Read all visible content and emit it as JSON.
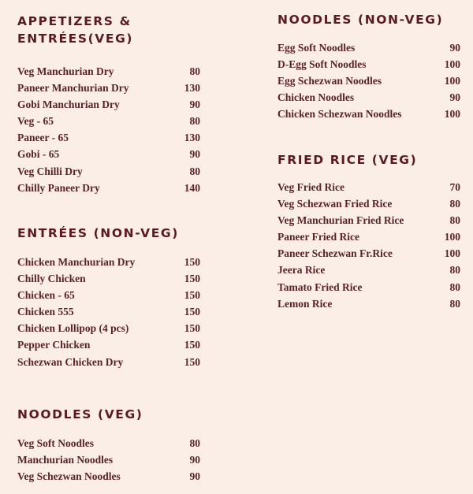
{
  "colors": {
    "background": "#fbeee6",
    "text": "#5b1e24"
  },
  "sections": {
    "appetizers_veg": {
      "title": "APPETIZERS & ENTRÉES(VEG)",
      "items": [
        {
          "name": "Veg Manchurian Dry",
          "price": "80"
        },
        {
          "name": "Paneer Manchurian Dry",
          "price": "130"
        },
        {
          "name": "Gobi Manchurian Dry",
          "price": "90"
        },
        {
          "name": "Veg - 65",
          "price": "80"
        },
        {
          "name": "Paneer - 65",
          "price": "130"
        },
        {
          "name": "Gobi - 65",
          "price": "90"
        },
        {
          "name": "Veg Chilli Dry",
          "price": "80"
        },
        {
          "name": "Chilly Paneer Dry",
          "price": "140"
        }
      ]
    },
    "entrees_nonveg": {
      "title": "ENTRÉES (NON-VEG)",
      "items": [
        {
          "name": "Chicken Manchurian Dry",
          "price": "150"
        },
        {
          "name": "Chilly Chicken",
          "price": "150"
        },
        {
          "name": "Chicken - 65",
          "price": "150"
        },
        {
          "name": "Chicken 555",
          "price": "150"
        },
        {
          "name": "Chicken Lollipop (4 pcs)",
          "price": "150"
        },
        {
          "name": "Pepper Chicken",
          "price": "150"
        },
        {
          "name": "Schezwan Chicken Dry",
          "price": "150"
        }
      ]
    },
    "noodles_veg": {
      "title": "NOODLES (VEG)",
      "items": [
        {
          "name": "Veg Soft Noodles",
          "price": "80"
        },
        {
          "name": "Manchurian Noodles",
          "price": "90"
        },
        {
          "name": "Veg Schezwan Noodles",
          "price": "90"
        }
      ]
    },
    "noodles_nonveg": {
      "title": "NOODLES (NON-VEG)",
      "items": [
        {
          "name": "Egg Soft Noodles",
          "price": "90"
        },
        {
          "name": "D-Egg Soft Noodles",
          "price": "100"
        },
        {
          "name": "Egg Schezwan Noodles",
          "price": "100"
        },
        {
          "name": "Chicken Noodles",
          "price": "90"
        },
        {
          "name": "Chicken Schezwan Noodles",
          "price": "100"
        }
      ]
    },
    "fried_rice_veg": {
      "title": "FRIED RICE (VEG)",
      "items": [
        {
          "name": "Veg Fried Rice",
          "price": "70"
        },
        {
          "name": "Veg Schezwan Fried Rice",
          "price": "80"
        },
        {
          "name": "Veg Manchurian Fried Rice",
          "price": "80"
        },
        {
          "name": "Paneer Fried Rice",
          "price": "100"
        },
        {
          "name": "Paneer Schezwan Fr.Rice",
          "price": "100"
        },
        {
          "name": "Jeera Rice",
          "price": "80"
        },
        {
          "name": "Tamato Fried Rice",
          "price": "80"
        },
        {
          "name": "Lemon Rice",
          "price": "80"
        }
      ]
    }
  }
}
